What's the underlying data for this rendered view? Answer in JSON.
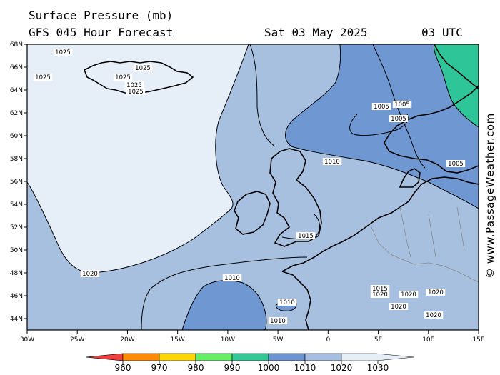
{
  "header": {
    "title": "Surface Pressure (mb)",
    "forecast": "GFS 045 Hour Forecast",
    "date": "Sat 03 May 2025",
    "time": "03 UTC"
  },
  "credit": "© www.PassageWeather.com",
  "map": {
    "lat_labels": [
      "68N",
      "66N",
      "64N",
      "62N",
      "60N",
      "58N",
      "56N",
      "54N",
      "52N",
      "50N",
      "48N",
      "46N",
      "44N"
    ],
    "lon_labels": [
      "30W",
      "25W",
      "20W",
      "15W",
      "10W",
      "5W",
      "0",
      "5E",
      "10E",
      "15E"
    ],
    "isobar_labels": [
      "1025",
      "1025",
      "1025",
      "1025",
      "1025",
      "1025",
      "1020",
      "1015",
      "1010",
      "1010",
      "1010",
      "1010",
      "1005",
      "1005",
      "1005",
      "1005",
      "1015",
      "1020",
      "1020",
      "1020",
      "1020",
      "1020",
      "1005"
    ],
    "fill_colors": {
      "p1030": "#e6eef7",
      "p1020": "#a8c0e0",
      "p1010": "#6f97d2",
      "p1000": "#2ec598"
    }
  },
  "colorbar": {
    "ticks": [
      "960",
      "970",
      "980",
      "990",
      "1000",
      "1010",
      "1020",
      "1030"
    ],
    "colors": [
      "#ee4040",
      "#ff8c00",
      "#ffd700",
      "#66ee66",
      "#33c896",
      "#6b94d0",
      "#a6bee0",
      "#e6eef7"
    ]
  }
}
